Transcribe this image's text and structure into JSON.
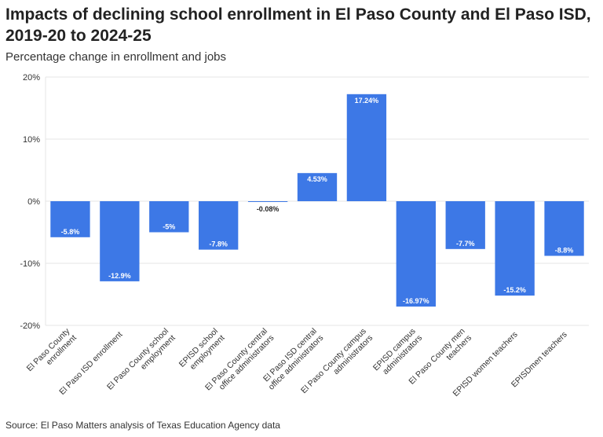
{
  "chart_data": {
    "type": "bar",
    "title": "Impacts of declining school enrollment in El Paso County and El Paso ISD, 2019-20 to 2024-25",
    "subtitle": "Percentage change in enrollment and jobs",
    "categories": [
      [
        "El Paso County",
        "enrollment"
      ],
      [
        "El Paso ISD enrollment"
      ],
      [
        "El Paso County school",
        "employment"
      ],
      [
        "EPISD school",
        "employment"
      ],
      [
        "El Paso County central",
        "office administrators"
      ],
      [
        "El Paso ISD central",
        "office administrators"
      ],
      [
        "El Paso County campus",
        "administrators"
      ],
      [
        "EPISD campus",
        "administrators"
      ],
      [
        "El Paso County men",
        "teachers"
      ],
      [
        "EPISD women teachers"
      ],
      [
        "EPISDmen teachers"
      ]
    ],
    "values": [
      -5.8,
      -12.9,
      -5,
      -7.8,
      -0.08,
      4.53,
      17.24,
      -16.97,
      -7.7,
      -15.2,
      -8.8
    ],
    "data_labels": [
      "-5.8%",
      "-12.9%",
      "-5%",
      "-7.8%",
      "-0.08%",
      "4.53%",
      "17.24%",
      "-16.97%",
      "-7.7%",
      "-15.2%",
      "-8.8%"
    ],
    "ylim": [
      -20,
      20
    ],
    "yticks": [
      20,
      10,
      0,
      -10,
      -20
    ],
    "ytick_labels": [
      "20%",
      "10%",
      "0%",
      "-10%",
      "-20%"
    ],
    "xlabel": "",
    "ylabel": "",
    "grid": true,
    "bar_color": "#3d78e6"
  },
  "source": "Source: El Paso Matters analysis of Texas Education Agency data"
}
